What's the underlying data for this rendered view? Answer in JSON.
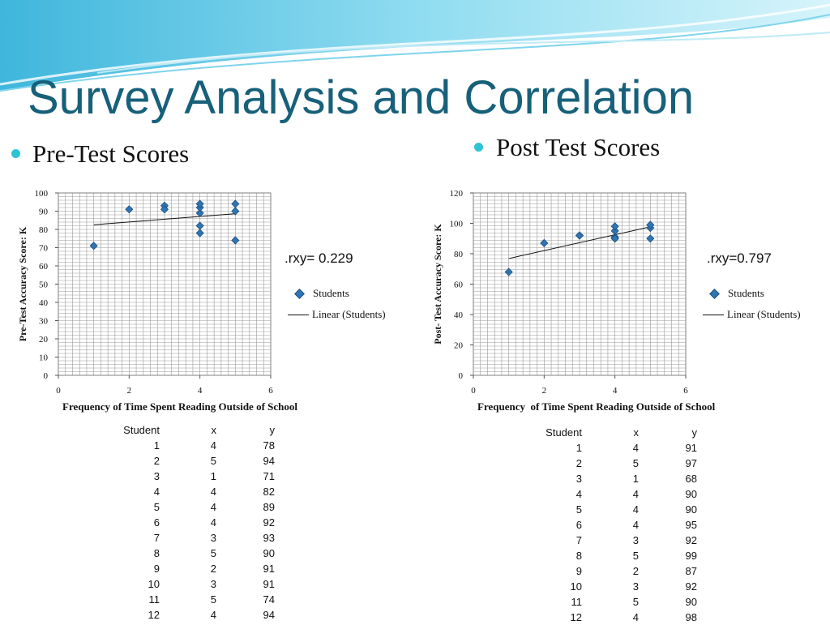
{
  "title": "Survey Analysis and Correlation",
  "colors": {
    "title": "#17607a",
    "bullet": "#2ec4d6",
    "marker": "#2e75b6",
    "banner": "#4fc3e0"
  },
  "left_panel": {
    "heading": "Pre-Test Scores",
    "rxy": ".rxy= 0.229",
    "legend_points": "Students",
    "legend_line": "Linear (Students)",
    "table_headers": [
      "Student",
      "x",
      "y"
    ],
    "table_rows": [
      [
        "1",
        "4",
        "78"
      ],
      [
        "2",
        "5",
        "94"
      ],
      [
        "3",
        "1",
        "71"
      ],
      [
        "4",
        "4",
        "82"
      ],
      [
        "5",
        "4",
        "89"
      ],
      [
        "6",
        "4",
        "92"
      ],
      [
        "7",
        "3",
        "93"
      ],
      [
        "8",
        "5",
        "90"
      ],
      [
        "9",
        "2",
        "91"
      ],
      [
        "10",
        "3",
        "91"
      ],
      [
        "11",
        "5",
        "74"
      ],
      [
        "12",
        "4",
        "94"
      ]
    ]
  },
  "right_panel": {
    "heading": "Post Test Scores",
    "rxy": ".rxy=0.797",
    "legend_points": "Students",
    "legend_line": "Linear (Students)",
    "table_headers": [
      "Student",
      "x",
      "y"
    ],
    "table_rows": [
      [
        "1",
        "4",
        "91"
      ],
      [
        "2",
        "5",
        "97"
      ],
      [
        "3",
        "1",
        "68"
      ],
      [
        "4",
        "4",
        "90"
      ],
      [
        "5",
        "4",
        "90"
      ],
      [
        "6",
        "4",
        "95"
      ],
      [
        "7",
        "3",
        "92"
      ],
      [
        "8",
        "5",
        "99"
      ],
      [
        "9",
        "2",
        "87"
      ],
      [
        "10",
        "3",
        "92"
      ],
      [
        "11",
        "5",
        "90"
      ],
      [
        "12",
        "4",
        "98"
      ]
    ]
  },
  "chart_data": [
    {
      "type": "scatter",
      "series": [
        {
          "name": "Students",
          "x": [
            4,
            5,
            1,
            4,
            4,
            4,
            3,
            5,
            2,
            3,
            5,
            4
          ],
          "y": [
            78,
            94,
            71,
            82,
            89,
            92,
            93,
            90,
            91,
            91,
            74,
            94
          ]
        }
      ],
      "trendline": {
        "name": "Linear (Students)",
        "type": "linear"
      },
      "xlabel": "Frequency of Time Spent Reading Outside of School",
      "ylabel": "Pre-Test Accuracy Score: K",
      "xlim": [
        0,
        6
      ],
      "ylim": [
        0,
        100
      ],
      "xticks": [
        "0",
        "2",
        "4",
        "6"
      ],
      "yticks": [
        "0",
        "10",
        "20",
        "30",
        "40",
        "50",
        "60",
        "70",
        "80",
        "90",
        "100"
      ],
      "grid": true,
      "legend": "right"
    },
    {
      "type": "scatter",
      "series": [
        {
          "name": "Students",
          "x": [
            4,
            5,
            1,
            4,
            4,
            4,
            3,
            5,
            2,
            3,
            5,
            4
          ],
          "y": [
            91,
            97,
            68,
            90,
            90,
            95,
            92,
            99,
            87,
            92,
            90,
            98
          ]
        }
      ],
      "trendline": {
        "name": "Linear (Students)",
        "type": "linear"
      },
      "xlabel": "Frequency  of Time Spent Reading Outside of School",
      "ylabel": "Post- Test Accuracy  Score: K",
      "xlim": [
        0,
        6
      ],
      "ylim": [
        0,
        120
      ],
      "xticks": [
        "0",
        "2",
        "4",
        "6"
      ],
      "yticks": [
        "0",
        "20",
        "40",
        "60",
        "80",
        "100",
        "120"
      ],
      "grid": true,
      "legend": "right"
    }
  ]
}
